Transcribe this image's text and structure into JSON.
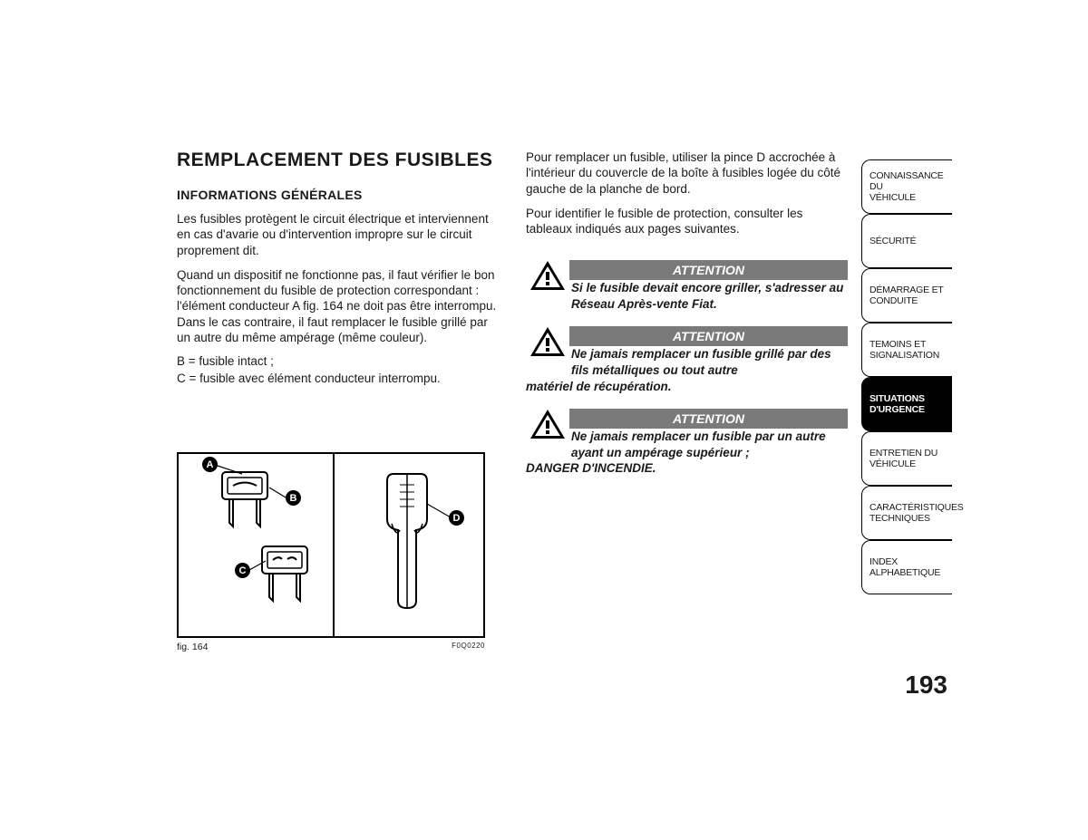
{
  "left": {
    "title": "REMPLACEMENT DES FUSIBLES",
    "subtitle": "INFORMATIONS GÉNÉRALES",
    "p1": "Les fusibles protègent le circuit électrique et interviennent en cas d'avarie ou d'intervention impropre sur le circuit proprement dit.",
    "p2": "Quand un dispositif ne fonctionne pas, il faut vérifier le bon fonctionnement du fusible de protection correspondant : l'élément conducteur A fig. 164 ne doit pas être interrompu. Dans le cas contraire, il faut remplacer le fusible grillé par un autre du même ampérage (même couleur).",
    "legB": "B = fusible intact ;",
    "legC": "C = fusible avec élément conducteur interrompu.",
    "figCaption": "fig. 164",
    "figCode": "F0Q0220",
    "callouts": {
      "A": "A",
      "B": "B",
      "C": "C",
      "D": "D"
    }
  },
  "right": {
    "p1": "Pour remplacer un fusible, utiliser la pince D accrochée à l'intérieur du couvercle de la boîte à fusibles logée du côté gauche de la planche de bord.",
    "p2": "Pour identifier le fusible de protection, consulter les tableaux indiqués aux pages suivantes.",
    "warn1": {
      "title": "ATTENTION",
      "text": "Si le fusible devait encore griller, s'adresser au Réseau Après-vente Fiat."
    },
    "warn2": {
      "title": "ATTENTION",
      "text": "Ne jamais remplacer un fusible grillé par des fils métalliques ou tout autre",
      "textCont": "matériel de récupération."
    },
    "warn3": {
      "title": "ATTENTION",
      "text": "Ne jamais remplacer un fusible par un autre ayant un ampérage supérieur ;",
      "textCont": "DANGER D'INCENDIE."
    }
  },
  "tabs": [
    {
      "l1": "CONNAISSANCE DU",
      "l2": "VÉHICULE"
    },
    {
      "l1": "SÉCURITÉ",
      "l2": ""
    },
    {
      "l1": "DÉMARRAGE ET",
      "l2": "CONDUITE"
    },
    {
      "l1": "TEMOINS ET",
      "l2": "SIGNALISATION"
    },
    {
      "l1": "SITUATIONS",
      "l2": "D'URGENCE"
    },
    {
      "l1": "ENTRETIEN DU",
      "l2": "VÉHICULE"
    },
    {
      "l1": "CARACTÉRISTIQUES",
      "l2": "TECHNIQUES"
    },
    {
      "l1": "INDEX",
      "l2": "ALPHABETIQUE"
    }
  ],
  "activeTab": 4,
  "pageNumber": "193",
  "colors": {
    "barGray": "#7a7a7a"
  }
}
